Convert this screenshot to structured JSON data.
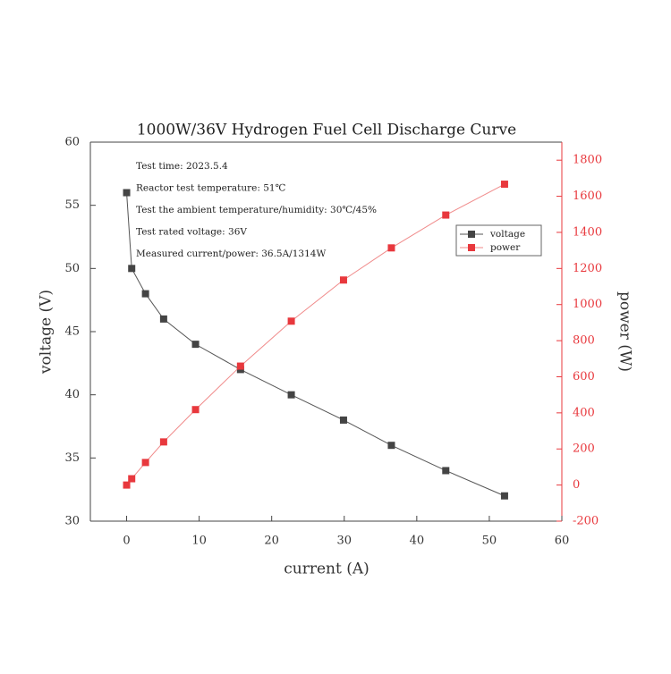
{
  "chart_data": {
    "type": "line",
    "title": "1000W/36V Hydrogen Fuel Cell Discharge Curve",
    "xlabel": "current (A)",
    "ylabel": "voltage (V)",
    "y2label": "power (W)",
    "annotations": [
      "Test time: 2023.5.4",
      "Reactor test temperature: 51℃",
      "Test the ambient temperature/humidity: 30℃/45%",
      "Test rated voltage: 36V",
      "Measured current/power: 36.5A/1314W"
    ],
    "x": [
      0,
      0.7,
      2.6,
      5.1,
      9.5,
      15.7,
      22.7,
      29.9,
      36.5,
      44,
      52.1
    ],
    "series": [
      {
        "name": "voltage",
        "color": "#444444",
        "line_color": "#555555",
        "values": [
          56,
          50,
          48,
          46,
          44,
          42,
          40,
          38,
          36,
          34,
          32
        ]
      },
      {
        "name": "power",
        "color": "#e8383d",
        "line_color": "#f08a8a",
        "axis": "y2",
        "values": [
          0,
          35,
          125,
          239,
          418,
          659,
          908,
          1136,
          1314,
          1496,
          1667
        ]
      }
    ],
    "xlim": [
      -5,
      60
    ],
    "xticks": [
      0,
      10,
      20,
      30,
      40,
      50,
      60
    ],
    "ylim": [
      30,
      60
    ],
    "yticks": [
      30,
      35,
      40,
      45,
      50,
      55,
      60
    ],
    "y2lim": [
      -200,
      1900
    ],
    "y2ticks": [
      -200,
      0,
      200,
      400,
      600,
      800,
      1000,
      1200,
      1400,
      1600,
      1800
    ],
    "y2_color": "#e8383d"
  }
}
